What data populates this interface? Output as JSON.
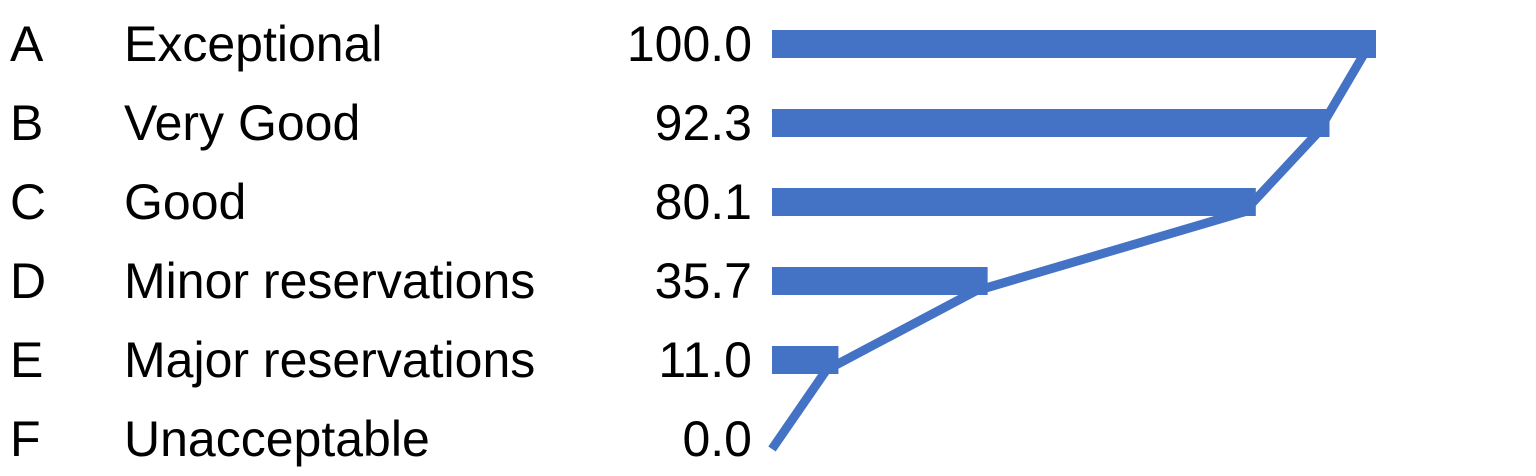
{
  "chart_data": {
    "type": "bar",
    "orientation": "horizontal",
    "title": "",
    "xlabel": "",
    "ylabel": "",
    "xlim": [
      0,
      100
    ],
    "grid": false,
    "legend": "none",
    "bar_color": "#4472C4",
    "line_color": "#4472C4",
    "categories": [
      {
        "grade": "A",
        "label": "Exceptional",
        "value": 100.0,
        "value_label": "100.0"
      },
      {
        "grade": "B",
        "label": "Very Good",
        "value": 92.3,
        "value_label": "92.3"
      },
      {
        "grade": "C",
        "label": "Good",
        "value": 80.1,
        "value_label": "80.1"
      },
      {
        "grade": "D",
        "label": "Minor reservations",
        "value": 35.7,
        "value_label": "35.7"
      },
      {
        "grade": "E",
        "label": "Major reservations",
        "value": 11.0,
        "value_label": "11.0"
      },
      {
        "grade": "F",
        "label": "Unacceptable",
        "value": 0.0,
        "value_label": "0.0"
      }
    ]
  }
}
